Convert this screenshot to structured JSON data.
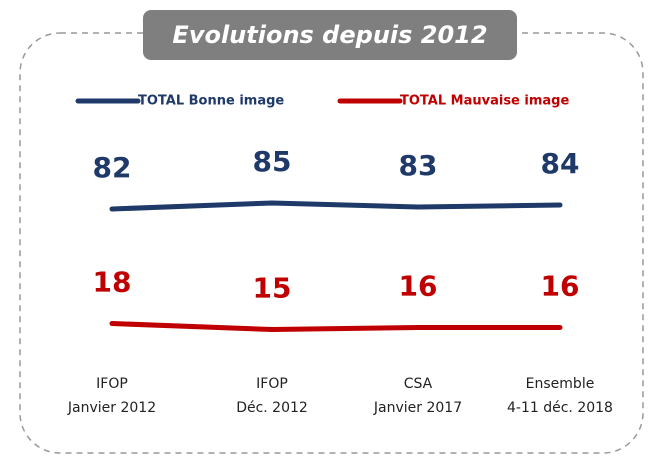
{
  "chart_data": {
    "type": "line",
    "title": "Evolutions depuis 2012",
    "categories": [
      [
        "IFOP",
        "Janvier 2012"
      ],
      [
        "IFOP",
        "Déc. 2012"
      ],
      [
        "CSA",
        "Janvier 2017"
      ],
      [
        "Ensemble",
        "4-11 déc. 2018"
      ]
    ],
    "series": [
      {
        "name": "TOTAL Bonne image",
        "color": "#1f3a68",
        "values": [
          82,
          85,
          83,
          84
        ]
      },
      {
        "name": "TOTAL Mauvaise image",
        "color": "#c00000",
        "values": [
          18,
          15,
          16,
          16
        ]
      }
    ]
  }
}
